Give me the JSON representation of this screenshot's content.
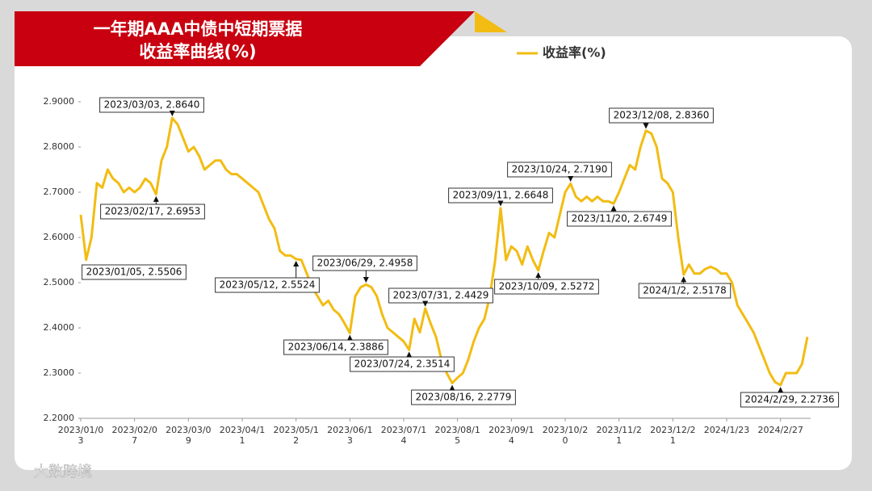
{
  "chart_data": {
    "type": "line",
    "title": [
      "一年期AAA中债中短期票据",
      "收益率曲线(%)"
    ],
    "watermark": "大数跨境",
    "categories": [
      "2023/01/03",
      null,
      null,
      null,
      null,
      null,
      null,
      null,
      null,
      null,
      "2023/02/07",
      null,
      null,
      null,
      null,
      null,
      null,
      null,
      null,
      null,
      "2023/03/09",
      null,
      null,
      null,
      null,
      null,
      null,
      null,
      null,
      null,
      "2023/04/11",
      null,
      null,
      null,
      null,
      null,
      null,
      null,
      null,
      null,
      "2023/05/12",
      null,
      null,
      null,
      null,
      null,
      null,
      null,
      null,
      null,
      "2023/06/13",
      null,
      null,
      null,
      null,
      null,
      null,
      null,
      null,
      null,
      "2023/07/14",
      null,
      null,
      null,
      null,
      null,
      null,
      null,
      null,
      null,
      "2023/08/15",
      null,
      null,
      null,
      null,
      null,
      null,
      null,
      null,
      null,
      "2023/09/14",
      null,
      null,
      null,
      null,
      null,
      null,
      null,
      null,
      null,
      "2023/10/20",
      null,
      null,
      null,
      null,
      null,
      null,
      null,
      null,
      null,
      "2023/11/21",
      null,
      null,
      null,
      null,
      null,
      null,
      null,
      null,
      null,
      "2023/12/21",
      null,
      null,
      null,
      null,
      null,
      null,
      null,
      null,
      null,
      "2024/1/23",
      null,
      null,
      null,
      null,
      null,
      null,
      null,
      null,
      null,
      "2024/2/27",
      null,
      null,
      null,
      null,
      null
    ],
    "series": [
      {
        "name": "收益率(%)",
        "color": "#f2bc12",
        "values": [
          2.65,
          2.5506,
          2.6,
          2.72,
          2.71,
          2.75,
          2.73,
          2.72,
          2.7,
          2.71,
          2.7,
          2.71,
          2.73,
          2.72,
          2.6953,
          2.77,
          2.8,
          2.864,
          2.85,
          2.82,
          2.79,
          2.8,
          2.78,
          2.75,
          2.76,
          2.77,
          2.77,
          2.75,
          2.74,
          2.74,
          2.73,
          2.72,
          2.71,
          2.7,
          2.67,
          2.64,
          2.62,
          2.57,
          2.56,
          2.56,
          2.5524,
          2.55,
          2.52,
          2.49,
          2.47,
          2.45,
          2.46,
          2.44,
          2.43,
          2.41,
          2.3886,
          2.47,
          2.49,
          2.4958,
          2.49,
          2.47,
          2.43,
          2.4,
          2.39,
          2.38,
          2.37,
          2.3514,
          2.42,
          2.39,
          2.4429,
          2.41,
          2.38,
          2.33,
          2.3,
          2.2779,
          2.29,
          2.3,
          2.33,
          2.37,
          2.4,
          2.42,
          2.47,
          2.55,
          2.6648,
          2.55,
          2.58,
          2.57,
          2.54,
          2.58,
          2.55,
          2.5272,
          2.57,
          2.61,
          2.6,
          2.65,
          2.7,
          2.719,
          2.69,
          2.68,
          2.69,
          2.68,
          2.69,
          2.68,
          2.68,
          2.6749,
          2.7,
          2.73,
          2.76,
          2.75,
          2.8,
          2.836,
          2.83,
          2.8,
          2.73,
          2.72,
          2.7,
          2.6,
          2.5178,
          2.54,
          2.52,
          2.52,
          2.53,
          2.535,
          2.53,
          2.52,
          2.52,
          2.5,
          2.45,
          2.43,
          2.41,
          2.39,
          2.36,
          2.33,
          2.3,
          2.28,
          2.2736,
          2.3,
          2.3,
          2.3,
          2.32,
          2.38
        ]
      }
    ],
    "annotations": [
      "2023/03/03, 2.8640",
      "2023/02/17, 2.6953",
      "2023/01/05, 2.5506",
      "2023/05/12, 2.5524",
      "2023/06/29, 2.4958",
      "2023/06/14, 2.3886",
      "2023/07/31, 2.4429",
      "2023/07/24, 2.3514",
      "2023/08/16, 2.2779",
      "2023/09/11, 2.6648",
      "2023/10/09, 2.5272",
      "2023/10/24, 2.7190",
      "2023/11/20, 2.6749",
      "2023/12/08, 2.8360",
      "2024/1/2, 2.5178",
      "2024/2/29, 2.2736"
    ],
    "ylim": [
      2.2,
      2.9
    ],
    "yticks": [
      {
        "value": 2.2,
        "label": "2.2000"
      },
      {
        "value": 2.3,
        "label": "2.3000"
      },
      {
        "value": 2.4,
        "label": "2.4000"
      },
      {
        "value": 2.5,
        "label": "2.5000"
      },
      {
        "value": 2.6,
        "label": "2.6000"
      },
      {
        "value": 2.7,
        "label": "2.7000"
      },
      {
        "value": 2.8,
        "label": "2.8000"
      },
      {
        "value": 2.9,
        "label": "2.9000"
      }
    ],
    "grid": false,
    "legend": "top"
  }
}
